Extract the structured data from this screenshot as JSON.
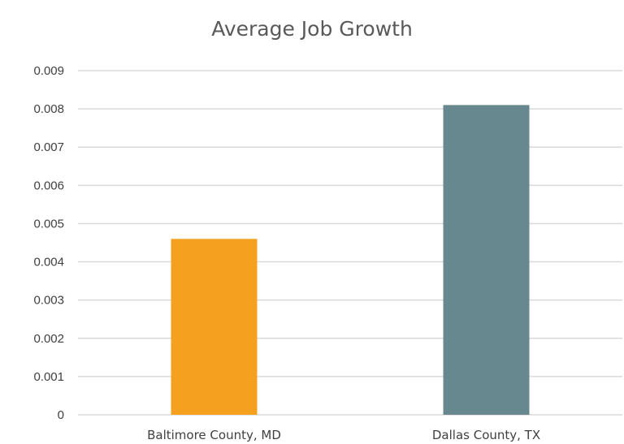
{
  "chart_data": {
    "type": "bar",
    "title": "Average Job Growth",
    "categories": [
      "Baltimore County, MD",
      "Dallas County, TX"
    ],
    "values": [
      0.0046,
      0.0081
    ],
    "colors": [
      "#F5A11F",
      "#68888F"
    ],
    "xlabel": "",
    "ylabel": "",
    "ylim": [
      0,
      0.009
    ],
    "yticks": [
      "0",
      "0.001",
      "0.002",
      "0.003",
      "0.004",
      "0.005",
      "0.006",
      "0.007",
      "0.008",
      "0.009"
    ],
    "grid": true,
    "legend": false
  }
}
